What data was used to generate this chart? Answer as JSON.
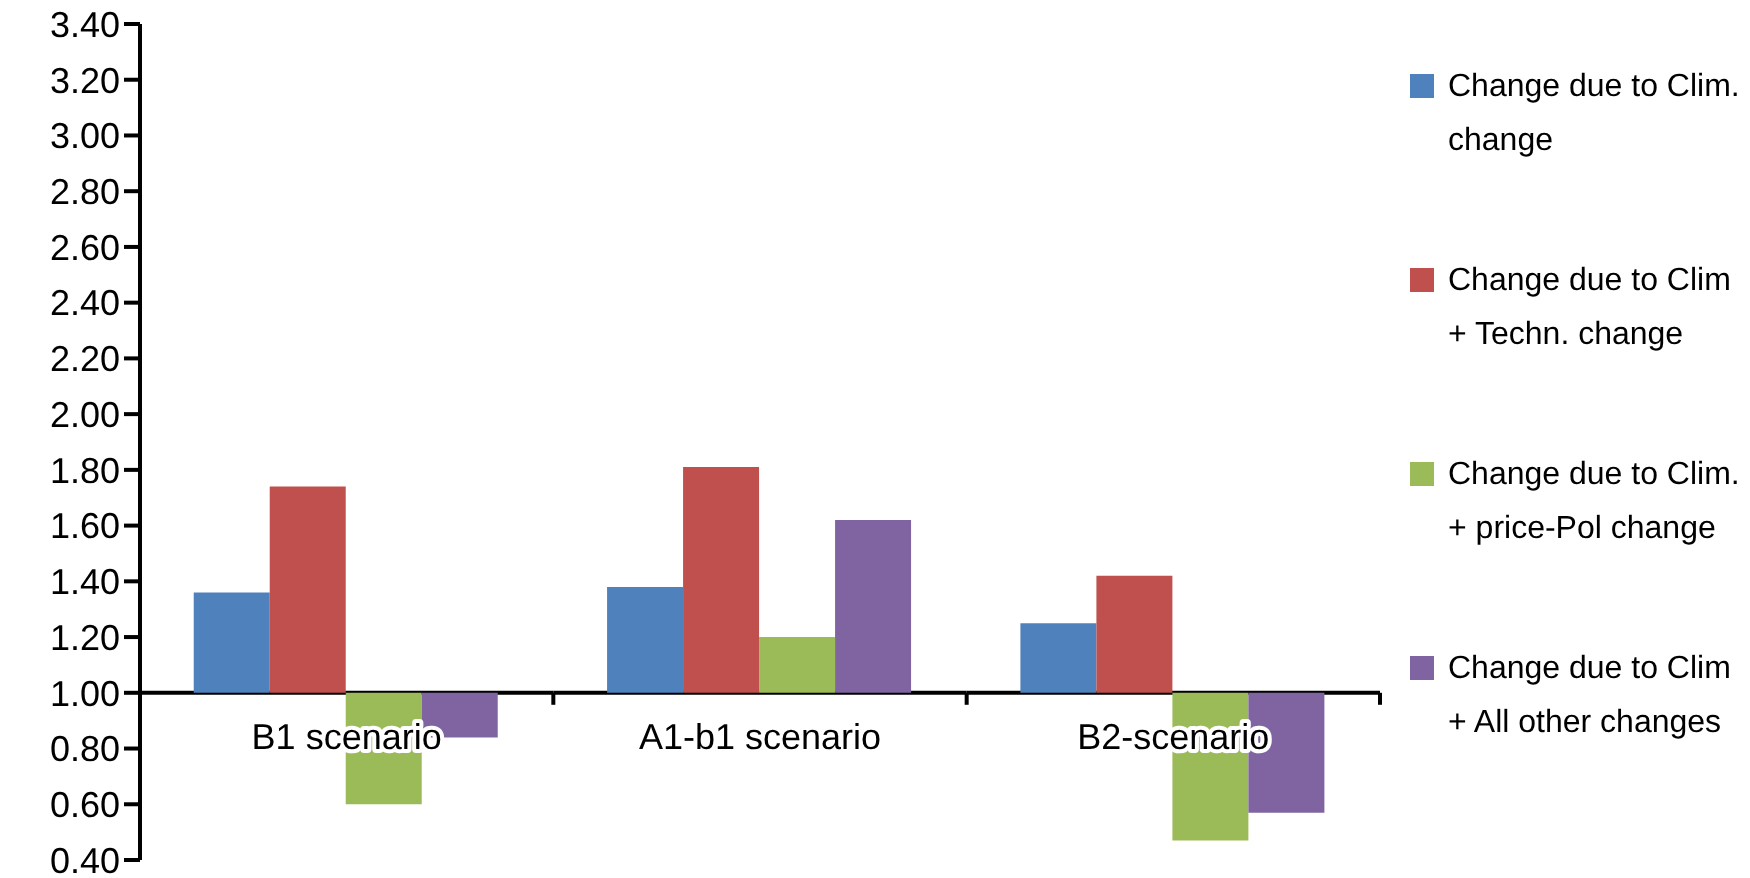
{
  "chart_data": {
    "type": "bar",
    "categories": [
      "B1 scenario",
      "A1-b1 scenario",
      "B2-scenario"
    ],
    "series": [
      {
        "name": "Change due to Clim. change",
        "color": "#4f81bd",
        "base": [
          1,
          1,
          1
        ],
        "values": [
          0.36,
          0.38,
          0.25
        ]
      },
      {
        "name": "Change due to Clim + Techn. change",
        "color": "#c0504d",
        "base": [
          1,
          1,
          1
        ],
        "values": [
          0.74,
          0.81,
          0.42
        ]
      },
      {
        "name": "Change due to Clim. + price-Pol change",
        "color": "#9bbb59",
        "base": [
          1,
          1,
          1
        ],
        "values": [
          -0.4,
          0.2,
          -0.53
        ]
      },
      {
        "name": "Change due to Clim + All other changes",
        "color": "#8064a2",
        "base": [
          1,
          1,
          1
        ],
        "values": [
          -0.16,
          0.62,
          -0.43
        ]
      }
    ],
    "ylim": [
      0.4,
      3.4
    ],
    "yticks": [
      {
        "value": 0.4,
        "label": "0.40"
      },
      {
        "value": 0.6,
        "label": "0.60"
      },
      {
        "value": 0.8,
        "label": "0.80"
      },
      {
        "value": 1,
        "label": "1.00"
      },
      {
        "value": 1.2,
        "label": "1.20"
      },
      {
        "value": 1.4,
        "label": "1.40"
      },
      {
        "value": 1.6,
        "label": "1.60"
      },
      {
        "value": 1.8,
        "label": "1.80"
      },
      {
        "value": 2,
        "label": "2.00"
      },
      {
        "value": 2.2,
        "label": "2.20"
      },
      {
        "value": 2.4,
        "label": "2.40"
      },
      {
        "value": 2.6,
        "label": "2.60"
      },
      {
        "value": 2.8,
        "label": "2.80"
      },
      {
        "value": 3,
        "label": "3.00"
      },
      {
        "value": 3.2,
        "label": "3.20"
      },
      {
        "value": 3.4,
        "label": "3.40"
      }
    ],
    "grid": false,
    "legend": "right"
  }
}
